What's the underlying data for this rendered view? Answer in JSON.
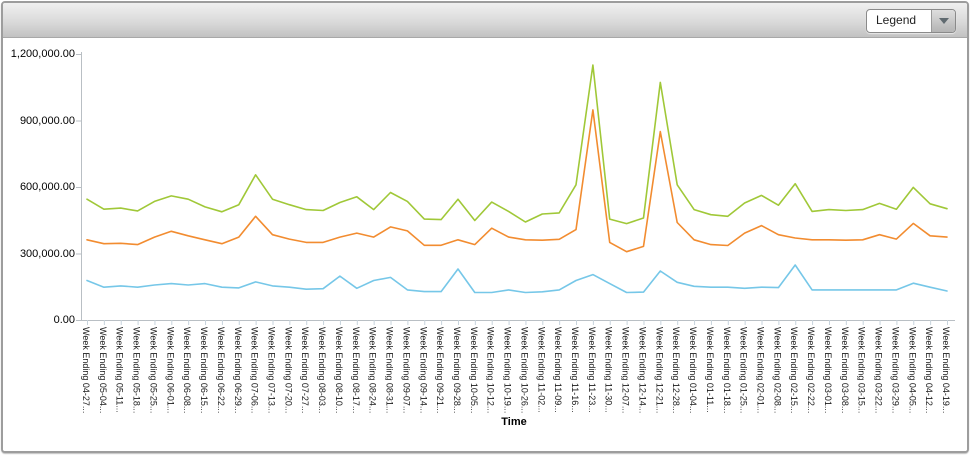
{
  "toolbar": {
    "legend_label": "Legend"
  },
  "colors": {
    "series_green": "#A0C838",
    "series_orange": "#F28C30",
    "series_blue": "#76C7E8",
    "axis": "#b9bfc4",
    "x_tick": "#c7d3dc",
    "toolbar_top": "#f0f0f0",
    "toolbar_bottom": "#c2c2c2"
  },
  "chart_data": {
    "type": "line",
    "title": "",
    "xlabel": "Time",
    "ylabel": "",
    "ylim": [
      0,
      1200000
    ],
    "grid": false,
    "legend_position": "collapsed-dropdown-top-right",
    "y_ticks": [
      {
        "value": 0,
        "label": "0.00"
      },
      {
        "value": 300000,
        "label": "300,000.00"
      },
      {
        "value": 600000,
        "label": "600,000.00"
      },
      {
        "value": 900000,
        "label": "900,000.00"
      },
      {
        "value": 1200000,
        "label": "1,200,000.00"
      }
    ],
    "categories": [
      "Week Ending 04-27...",
      "Week Ending 05-04...",
      "Week Ending 05-11...",
      "Week Ending 05-18...",
      "Week Ending 05-25...",
      "Week Ending 06-01...",
      "Week Ending 06-08...",
      "Week Ending 06-15...",
      "Week Ending 06-22...",
      "Week Ending 06-29...",
      "Week Ending 07-06...",
      "Week Ending 07-13...",
      "Week Ending 07-20...",
      "Week Ending 07-27...",
      "Week Ending 08-03...",
      "Week Ending 08-10...",
      "Week Ending 08-17...",
      "Week Ending 08-24...",
      "Week Ending 08-31...",
      "Week Ending 09-07...",
      "Week Ending 09-14...",
      "Week Ending 09-21...",
      "Week Ending 09-28...",
      "Week Ending 10-05...",
      "Week Ending 10-12...",
      "Week Ending 10-19...",
      "Week Ending 10-26...",
      "Week Ending 11-02...",
      "Week Ending 11-09...",
      "Week Ending 11-16...",
      "Week Ending 11-23...",
      "Week Ending 11-30...",
      "Week Ending 12-07...",
      "Week Ending 12-14...",
      "Week Ending 12-21...",
      "Week Ending 12-28...",
      "Week Ending 01-04...",
      "Week Ending 01-11...",
      "Week Ending 01-18...",
      "Week Ending 01-25...",
      "Week Ending 02-01...",
      "Week Ending 02-08...",
      "Week Ending 02-15...",
      "Week Ending 02-22...",
      "Week Ending 03-01...",
      "Week Ending 03-08...",
      "Week Ending 03-15...",
      "Week Ending 03-22...",
      "Week Ending 03-29...",
      "Week Ending 04-05...",
      "Week Ending 04-12...",
      "Week Ending 04-19..."
    ],
    "series": [
      {
        "name": "green",
        "color": "#A0C838",
        "values": [
          545000,
          500000,
          505000,
          492000,
          535000,
          560000,
          545000,
          510000,
          488000,
          520000,
          655000,
          545000,
          520000,
          498000,
          494000,
          530000,
          556000,
          498000,
          575000,
          535000,
          455000,
          453000,
          545000,
          449000,
          532000,
          490000,
          442000,
          478000,
          483000,
          610000,
          1150000,
          455000,
          435000,
          460000,
          1072000,
          610000,
          498000,
          475000,
          468000,
          528000,
          562000,
          518000,
          615000,
          490000,
          498000,
          494000,
          498000,
          526000,
          500000,
          598000,
          524000,
          502000
        ]
      },
      {
        "name": "orange",
        "color": "#F28C30",
        "values": [
          362000,
          344000,
          346000,
          340000,
          374000,
          400000,
          380000,
          362000,
          344000,
          374000,
          468000,
          385000,
          365000,
          350000,
          350000,
          374000,
          392000,
          374000,
          420000,
          402000,
          337000,
          337000,
          362000,
          340000,
          414000,
          374000,
          362000,
          360000,
          364000,
          408000,
          948000,
          350000,
          308000,
          332000,
          850000,
          440000,
          362000,
          340000,
          336000,
          392000,
          426000,
          385000,
          370000,
          362000,
          362000,
          360000,
          362000,
          385000,
          365000,
          436000,
          380000,
          374000
        ]
      },
      {
        "name": "blue",
        "color": "#76C7E8",
        "values": [
          178000,
          148000,
          154000,
          148000,
          158000,
          164000,
          158000,
          164000,
          148000,
          145000,
          172000,
          154000,
          148000,
          139000,
          141000,
          198000,
          143000,
          178000,
          192000,
          136000,
          128000,
          128000,
          230000,
          124000,
          124000,
          136000,
          124000,
          127000,
          136000,
          178000,
          205000,
          164000,
          124000,
          126000,
          221000,
          170000,
          152000,
          148000,
          148000,
          143000,
          148000,
          146000,
          248000,
          136000,
          136000,
          136000,
          136000,
          136000,
          136000,
          166000,
          148000,
          131000
        ]
      }
    ]
  }
}
